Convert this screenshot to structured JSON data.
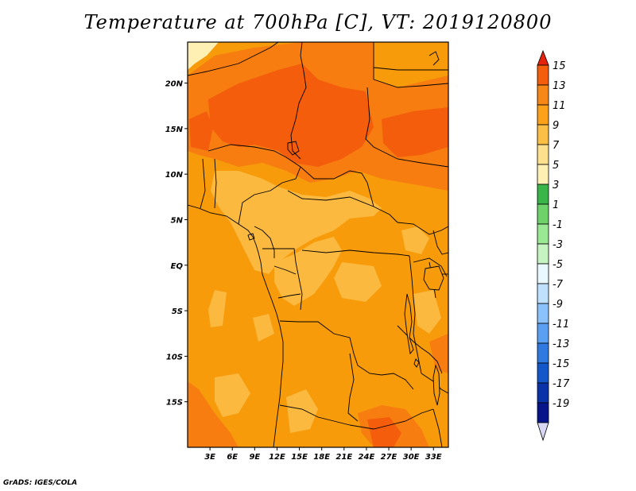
{
  "title": "Temperature at 700hPa [C], VT: 2019120800",
  "credit": "GrADS: IGES/COLA",
  "map": {
    "lon_labels": [
      "3E",
      "6E",
      "9E",
      "12E",
      "15E",
      "18E",
      "21E",
      "24E",
      "27E",
      "30E",
      "33E"
    ],
    "lat_labels": [
      "20N",
      "15N",
      "10N",
      "5N",
      "EQ",
      "5S",
      "10S",
      "15S"
    ],
    "lon_range": [
      0,
      35
    ],
    "lat_range": [
      -20,
      24.5
    ],
    "colors": {
      "hot": "#f45d0c",
      "warm_deep": "#f77d10",
      "warm": "#f79b0b",
      "mild": "#fbb93f",
      "cool_yellow": "#fde08d",
      "pale": "#fef0b3",
      "border": "#000000"
    }
  },
  "colorbar": {
    "labels": [
      "15",
      "13",
      "11",
      "9",
      "7",
      "5",
      "3",
      "1",
      "-1",
      "-3",
      "-5",
      "-7",
      "-9",
      "-11",
      "-13",
      "-15",
      "-17",
      "-19"
    ],
    "colors": [
      "#e5220c",
      "#f45d0c",
      "#f78716",
      "#fba11a",
      "#fbbf45",
      "#fde08d",
      "#fef0b3",
      "#3ab54a",
      "#6dd26a",
      "#9ae894",
      "#c6f3c2",
      "#e9f8ff",
      "#bfe0ff",
      "#8bc2fb",
      "#5aa0f2",
      "#2f79e0",
      "#1457c9",
      "#0a33a8",
      "#07148a"
    ],
    "tip_low": "#d8d8f5"
  }
}
